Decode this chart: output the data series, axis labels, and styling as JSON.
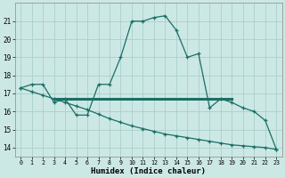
{
  "xlabel": "Humidex (Indice chaleur)",
  "xlim": [
    -0.5,
    23.5
  ],
  "ylim": [
    13.5,
    22.0
  ],
  "yticks": [
    14,
    15,
    16,
    17,
    18,
    19,
    20,
    21
  ],
  "xticks": [
    0,
    1,
    2,
    3,
    4,
    5,
    6,
    7,
    8,
    9,
    10,
    11,
    12,
    13,
    14,
    15,
    16,
    17,
    18,
    19,
    20,
    21,
    22,
    23
  ],
  "bg_color": "#cce8e5",
  "grid_color": "#aacfcc",
  "line_color": "#1a6e65",
  "curve1_x": [
    0,
    1,
    2,
    3,
    4,
    5,
    6,
    7,
    8,
    9,
    10,
    11,
    12,
    13,
    14,
    15,
    16,
    17,
    18,
    19,
    20,
    21,
    22,
    23
  ],
  "curve1_y": [
    17.3,
    17.5,
    17.5,
    16.5,
    16.7,
    15.8,
    15.8,
    17.5,
    17.5,
    19.0,
    21.0,
    21.0,
    21.2,
    21.3,
    20.5,
    19.0,
    19.2,
    16.2,
    16.7,
    16.5,
    16.2,
    16.0,
    15.5,
    13.9
  ],
  "curve2_x": [
    3,
    19
  ],
  "curve2_y": [
    16.7,
    16.7
  ],
  "curve3_x": [
    0,
    1,
    2,
    3,
    4,
    5,
    6,
    7,
    8,
    9,
    10,
    11,
    12,
    13,
    14,
    15,
    16,
    17,
    18,
    19,
    20,
    21,
    22,
    23
  ],
  "curve3_y": [
    17.3,
    17.1,
    16.9,
    16.7,
    16.5,
    16.3,
    16.1,
    15.85,
    15.6,
    15.4,
    15.2,
    15.05,
    14.9,
    14.75,
    14.65,
    14.55,
    14.45,
    14.35,
    14.25,
    14.15,
    14.1,
    14.05,
    14.0,
    13.9
  ]
}
